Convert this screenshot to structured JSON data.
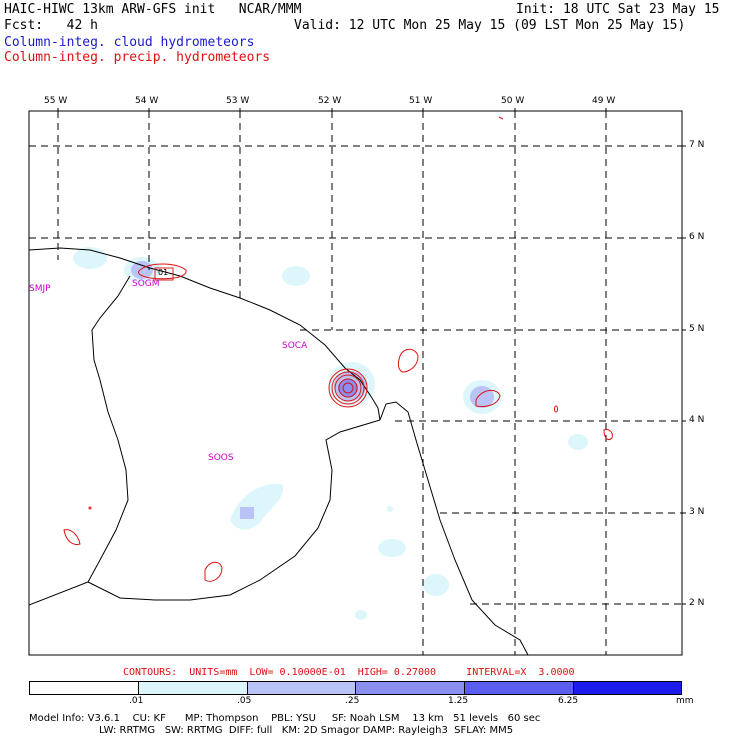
{
  "header": {
    "title_left": "HAIC-HIWC 13km ARW-GFS init   NCAR/MMM",
    "init": "Init: 18 UTC Sat 23 May 15",
    "fcst": "Fcst:   42 h",
    "valid": "Valid: 12 UTC Mon 25 May 15 (09 LST Mon 25 May 15)",
    "field1": "Column-integ. cloud hydrometeors",
    "field2": "Column-integ. precip. hydrometeors"
  },
  "longitude_labels": [
    "55 W",
    "54 W",
    "53 W",
    "52 W",
    "51 W",
    "50 W",
    "49 W"
  ],
  "latitude_labels": [
    "7 N",
    "6 N",
    "5 N",
    "4 N",
    "3 N",
    "2 N"
  ],
  "stations": [
    "SMJP",
    "SOGM",
    "SOCA",
    "SOOS"
  ],
  "station_mark": "01",
  "contour_info": "CONTOURS:  UNITS=mm  LOW= 0.10000E-01  HIGH= 0.27000     INTERVAL=X  3.0000",
  "colorbar": {
    "ticks": [
      ".01",
      ".05",
      ".25",
      "1.25",
      "6.25"
    ],
    "unit": "mm",
    "colors": [
      "#ffffff",
      "#ddf6fb",
      "#b9c3f5",
      "#8a8ef0",
      "#5a5ef0",
      "#1c1cee"
    ]
  },
  "model_info": {
    "line1": "Model Info: V3.6.1    CU: KF      MP: Thompson    PBL: YSU     SF: Noah LSM    13 km   51 levels   60 sec",
    "line2": "LW: RRTMG   SW: RRTMG  DIFF: full   KM: 2D Smagor DAMP: Rayleigh3  SFLAY: MM5"
  },
  "colors": {
    "cloud_light": "#ddf6fb",
    "cloud_mid": "#b9c3f5",
    "cloud_dark": "#8a8ef0",
    "precip_contour": "#dd1111",
    "station_label": "#cc00cc"
  }
}
